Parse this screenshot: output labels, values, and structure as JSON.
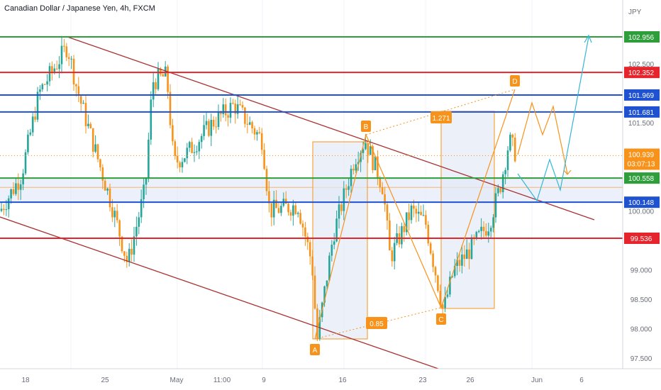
{
  "chart_data": {
    "type": "candlestick",
    "title": "Canadian Dollar / Japanese Yen, 4h, FXCM",
    "currency": "JPY",
    "price_axis_ticks": [
      {
        "v": 102.5,
        "label": "102.500"
      },
      {
        "v": 101.5,
        "label": "101.500"
      },
      {
        "v": 100.0,
        "label": "100.000"
      },
      {
        "v": 99.0,
        "label": "99.000"
      },
      {
        "v": 98.5,
        "label": "98.500"
      },
      {
        "v": 98.0,
        "label": "98.000"
      },
      {
        "v": 97.5,
        "label": "97.500"
      }
    ],
    "time_axis_ticks": [
      "18",
      "25",
      "May",
      "11:00",
      "9",
      "16",
      "23",
      "26",
      "Jun",
      "6"
    ],
    "current_price": {
      "value": "100.939",
      "countdown": "03:07:13",
      "color": "#f7931a"
    },
    "horizontal_levels": [
      {
        "value": 102.956,
        "label": "102.956",
        "color": "#2e9e3a"
      },
      {
        "value": 102.352,
        "label": "102.352",
        "color": "#e5242b"
      },
      {
        "value": 101.969,
        "label": "101.969",
        "color": "#1f52d1"
      },
      {
        "value": 101.681,
        "label": "101.681",
        "color": "#1f52d1"
      },
      {
        "value": 100.558,
        "label": "100.558",
        "color": "#2e9e3a"
      },
      {
        "value": 100.148,
        "label": "100.148",
        "color": "#1f52d1"
      },
      {
        "value": 99.536,
        "label": "99.536",
        "color": "#e5242b"
      }
    ],
    "pattern_points": [
      {
        "label": "A",
        "price": 97.75
      },
      {
        "label": "B",
        "price": 101.2
      },
      {
        "label": "C",
        "price": 98.32
      },
      {
        "label": "D",
        "price": 102.0
      }
    ],
    "fib_ratios": [
      "1.271",
      "0.85"
    ],
    "colors": {
      "up": "#26a69a",
      "down": "#f7931a",
      "channel": "#a83232",
      "harmonic": "#f7931a",
      "projection": "#35b6d5"
    }
  }
}
